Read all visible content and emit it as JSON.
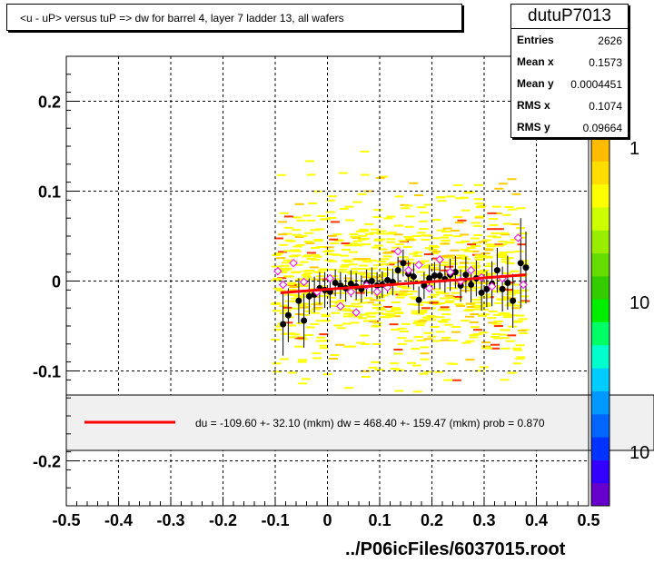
{
  "title": "<u - uP>       versus  tuP =>  dw for barrel 4, layer 7 ladder 13, all wafers",
  "stats": {
    "name": "dutuP7013",
    "rows": [
      {
        "label": "Entries",
        "value": "2626"
      },
      {
        "label": "Mean x",
        "value": "0.1573"
      },
      {
        "label": "Mean y",
        "value": "0.0004451"
      },
      {
        "label": "RMS x",
        "value": "0.1074"
      },
      {
        "label": "RMS y",
        "value": "0.09664"
      }
    ]
  },
  "legend": {
    "text": "du = -109.60 +- 32.10 (mkm) dw =  468.40 +- 159.47 (mkm) prob = 0.870",
    "line_color": "#ff0000"
  },
  "footer": "../P06icFiles/6037015.root",
  "palette": {
    "labels": [
      "1",
      "10",
      "10"
    ],
    "colors": [
      "#6600cc",
      "#3300ff",
      "#0033ff",
      "#0066ff",
      "#0099ff",
      "#00ccff",
      "#00ffcc",
      "#00ff66",
      "#00ee00",
      "#33cc00",
      "#66dd00",
      "#99ee00",
      "#ccff00",
      "#ffff00",
      "#ffdd00",
      "#ffbb00"
    ]
  },
  "chart_data": {
    "type": "scatter",
    "title": "<u - uP>       versus  tuP =>  dw for barrel 4, layer 7 ladder 13, all wafers",
    "xlim": [
      -0.5,
      0.5
    ],
    "ylim": [
      -0.25,
      0.25
    ],
    "grid": true,
    "x_ticks": [
      "-0.5",
      "-0.4",
      "-0.3",
      "-0.2",
      "-0.1",
      "0",
      "0.1",
      "0.2",
      "0.3",
      "0.4",
      "0.5"
    ],
    "y_ticks": [
      "-0.2",
      "-0.1",
      "0",
      "0.1",
      "0.2"
    ],
    "fit_line": {
      "x": [
        -0.09,
        0.38
      ],
      "y": [
        -0.013,
        0.007
      ],
      "color": "#ff0000"
    },
    "series": [
      {
        "marker": "filled-circle",
        "color": "#000000",
        "points": [
          {
            "x": -0.085,
            "y": -0.048,
            "err": 0.035
          },
          {
            "x": -0.075,
            "y": -0.038,
            "err": 0.03
          },
          {
            "x": -0.055,
            "y": -0.022,
            "err": 0.025
          },
          {
            "x": -0.045,
            "y": -0.044,
            "err": 0.03
          },
          {
            "x": -0.035,
            "y": -0.017,
            "err": 0.02
          },
          {
            "x": -0.025,
            "y": -0.015,
            "err": 0.02
          },
          {
            "x": -0.015,
            "y": -0.008,
            "err": 0.018
          },
          {
            "x": -0.005,
            "y": -0.01,
            "err": 0.02
          },
          {
            "x": 0.005,
            "y": -0.012,
            "err": 0.018
          },
          {
            "x": 0.015,
            "y": -0.002,
            "err": 0.015
          },
          {
            "x": 0.025,
            "y": -0.005,
            "err": 0.015
          },
          {
            "x": 0.035,
            "y": -0.008,
            "err": 0.015
          },
          {
            "x": 0.045,
            "y": -0.003,
            "err": 0.015
          },
          {
            "x": 0.055,
            "y": -0.006,
            "err": 0.015
          },
          {
            "x": 0.065,
            "y": -0.009,
            "err": 0.015
          },
          {
            "x": 0.075,
            "y": -0.002,
            "err": 0.015
          },
          {
            "x": 0.085,
            "y": 0.0,
            "err": 0.015
          },
          {
            "x": 0.095,
            "y": -0.005,
            "err": 0.015
          },
          {
            "x": 0.105,
            "y": -0.004,
            "err": 0.015
          },
          {
            "x": 0.115,
            "y": 0.001,
            "err": 0.015
          },
          {
            "x": 0.125,
            "y": -0.001,
            "err": 0.015
          },
          {
            "x": 0.135,
            "y": 0.012,
            "err": 0.015
          },
          {
            "x": 0.145,
            "y": 0.02,
            "err": 0.015
          },
          {
            "x": 0.155,
            "y": 0.008,
            "err": 0.015
          },
          {
            "x": 0.165,
            "y": 0.005,
            "err": 0.015
          },
          {
            "x": 0.175,
            "y": -0.021,
            "err": 0.015
          },
          {
            "x": 0.185,
            "y": -0.005,
            "err": 0.015
          },
          {
            "x": 0.195,
            "y": 0.003,
            "err": 0.015
          },
          {
            "x": 0.205,
            "y": 0.006,
            "err": 0.015
          },
          {
            "x": 0.215,
            "y": 0.006,
            "err": 0.015
          },
          {
            "x": 0.225,
            "y": 0.002,
            "err": 0.015
          },
          {
            "x": 0.235,
            "y": 0.007,
            "err": 0.018
          },
          {
            "x": 0.245,
            "y": 0.01,
            "err": 0.018
          },
          {
            "x": 0.255,
            "y": -0.005,
            "err": 0.018
          },
          {
            "x": 0.265,
            "y": 0.007,
            "err": 0.02
          },
          {
            "x": 0.275,
            "y": -0.004,
            "err": 0.02
          },
          {
            "x": 0.285,
            "y": 0.003,
            "err": 0.02
          },
          {
            "x": 0.295,
            "y": -0.013,
            "err": 0.02
          },
          {
            "x": 0.305,
            "y": -0.009,
            "err": 0.02
          },
          {
            "x": 0.315,
            "y": -0.003,
            "err": 0.025
          },
          {
            "x": 0.325,
            "y": 0.012,
            "err": 0.025
          },
          {
            "x": 0.335,
            "y": -0.009,
            "err": 0.025
          },
          {
            "x": 0.345,
            "y": -0.002,
            "err": 0.03
          },
          {
            "x": 0.355,
            "y": -0.022,
            "err": 0.03
          },
          {
            "x": 0.37,
            "y": 0.02,
            "err": 0.05
          },
          {
            "x": 0.38,
            "y": 0.015,
            "err": 0.04
          }
        ]
      },
      {
        "marker": "open-diamond",
        "color": "#ff00ff",
        "points": [
          {
            "x": -0.095,
            "y": 0.011
          },
          {
            "x": -0.085,
            "y": -0.004
          },
          {
            "x": -0.065,
            "y": 0.02
          },
          {
            "x": -0.045,
            "y": -0.001
          },
          {
            "x": -0.02,
            "y": -0.012
          },
          {
            "x": 0.005,
            "y": 0.003
          },
          {
            "x": 0.025,
            "y": -0.028
          },
          {
            "x": 0.045,
            "y": -0.012
          },
          {
            "x": 0.055,
            "y": -0.035
          },
          {
            "x": 0.075,
            "y": -0.005
          },
          {
            "x": 0.095,
            "y": -0.012
          },
          {
            "x": 0.115,
            "y": -0.007
          },
          {
            "x": 0.135,
            "y": 0.033
          },
          {
            "x": 0.155,
            "y": 0.012
          },
          {
            "x": 0.175,
            "y": 0.018
          },
          {
            "x": 0.195,
            "y": -0.008
          },
          {
            "x": 0.215,
            "y": 0.024
          },
          {
            "x": 0.235,
            "y": 0.01
          },
          {
            "x": 0.255,
            "y": 0.0
          },
          {
            "x": 0.275,
            "y": 0.012
          },
          {
            "x": 0.295,
            "y": 0.004
          },
          {
            "x": 0.315,
            "y": -0.006
          },
          {
            "x": 0.335,
            "y": 0.003
          },
          {
            "x": 0.365,
            "y": 0.048
          },
          {
            "x": 0.375,
            "y": -0.004
          }
        ]
      }
    ]
  }
}
